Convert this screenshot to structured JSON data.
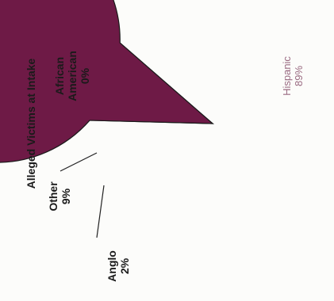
{
  "chart_data": {
    "type": "pie",
    "title": "Alleged Victims at Intake",
    "slices": [
      {
        "label": "Hispanic",
        "value": 89,
        "display": "89%",
        "color": "#6e1a46"
      },
      {
        "label": "Anglo",
        "value": 2,
        "display": "2%",
        "color": "#f4f4ef"
      },
      {
        "label": "Other",
        "value": 9,
        "display": "9%",
        "color": "#c9dde3"
      },
      {
        "label": "African American",
        "value": 0,
        "display": "0%",
        "color": "#b0b0b0"
      }
    ],
    "text_orientation": "rotated 90 degrees counter-clockwise"
  },
  "labels": {
    "african_line1": "African",
    "african_line2": "American",
    "african_pct": "0%",
    "hispanic_name": "Hispanic",
    "hispanic_pct": "89%",
    "other_name": "Other",
    "other_pct": "9%",
    "anglo_name": "Anglo",
    "anglo_pct": "2%"
  }
}
